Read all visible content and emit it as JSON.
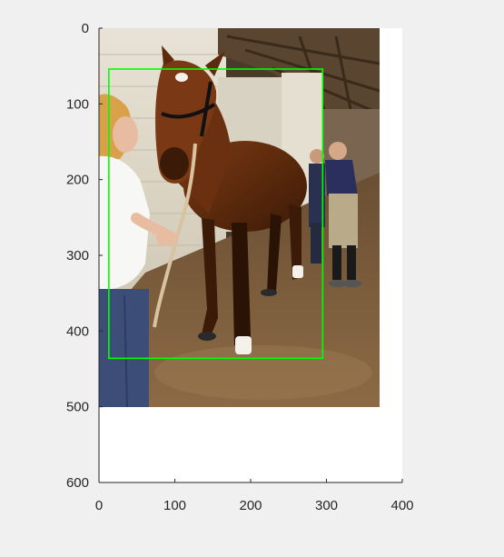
{
  "window": {
    "background_color": "#f0f0f0"
  },
  "axes": {
    "background_color": "#ffffff",
    "axis_color": "#262626",
    "x_range": [
      0,
      400
    ],
    "y_range": [
      0,
      600
    ],
    "y_direction": "reversed",
    "x_ticks": [
      "0",
      "100",
      "200",
      "300",
      "400"
    ],
    "y_ticks": [
      "0",
      "100",
      "200",
      "300",
      "400",
      "500",
      "600"
    ]
  },
  "image": {
    "subject": "brown horse with halter in stable aisle, handler in white t-shirt on left, two people in background",
    "extent_x": [
      0,
      370
    ],
    "extent_y": [
      0,
      500
    ]
  },
  "bounding_box": {
    "color": "#00ff00",
    "x_range": [
      13,
      295
    ],
    "y_range": [
      54,
      436
    ]
  }
}
